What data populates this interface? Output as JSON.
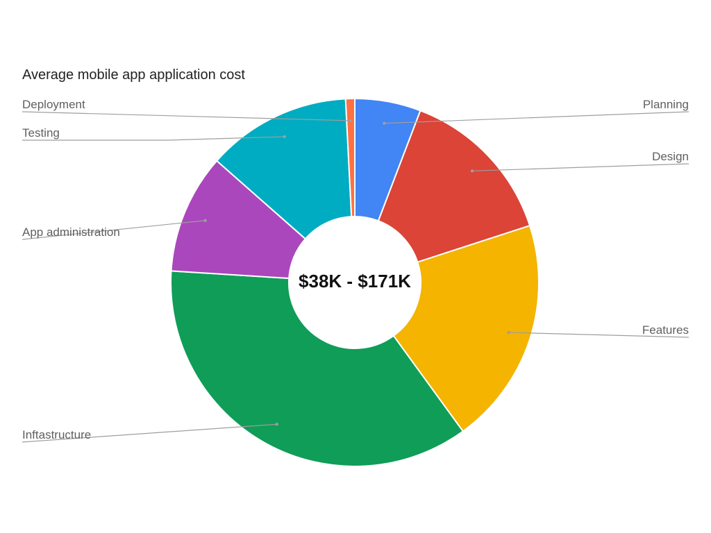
{
  "chart_data": {
    "type": "pie",
    "donut": true,
    "title": "Average mobile app application cost",
    "center_label": "$38K - $171K",
    "legend": "none",
    "slices": [
      {
        "label": "Planning",
        "value": 5.8,
        "color": "#4285F4",
        "side": "right"
      },
      {
        "label": "Design",
        "value": 14.2,
        "color": "#DB4437",
        "side": "right"
      },
      {
        "label": "Features",
        "value": 20.0,
        "color": "#F4B400",
        "side": "right"
      },
      {
        "label": "Inftastructure",
        "value": 36.0,
        "color": "#0F9D58",
        "side": "left"
      },
      {
        "label": "App administration",
        "value": 10.5,
        "color": "#AB47BC",
        "side": "left"
      },
      {
        "label": "Testing",
        "value": 12.7,
        "color": "#00ACC1",
        "side": "left"
      },
      {
        "label": "Deployment",
        "value": 0.8,
        "color": "#FF7043",
        "side": "left"
      }
    ]
  }
}
